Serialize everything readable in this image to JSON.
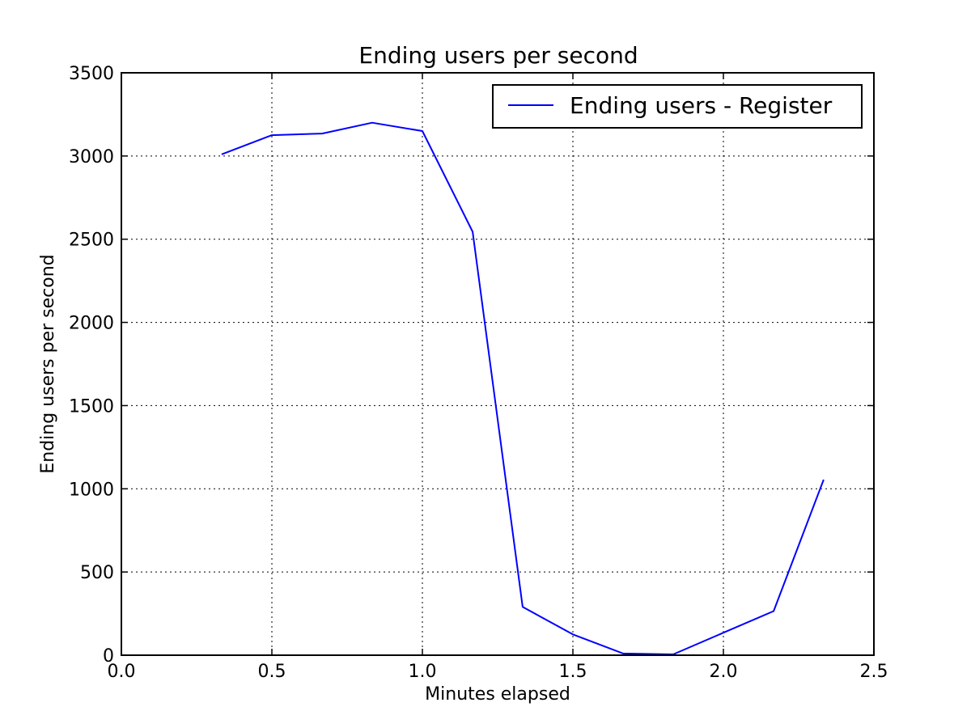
{
  "chart_data": {
    "type": "line",
    "title": "Ending users per second",
    "xlabel": "Minutes elapsed",
    "ylabel": "Ending users per second",
    "xlim": [
      0.0,
      2.5
    ],
    "ylim": [
      0,
      3500
    ],
    "xticks": [
      "0.0",
      "0.5",
      "1.0",
      "1.5",
      "2.0",
      "2.5"
    ],
    "yticks": [
      "0",
      "500",
      "1000",
      "1500",
      "2000",
      "2500",
      "3000",
      "3500"
    ],
    "grid": true,
    "legend_position": "top-right",
    "series": [
      {
        "name": "Ending users - Register",
        "color": "#0000ff",
        "x": [
          0.333,
          0.5,
          0.667,
          0.833,
          1.0,
          1.167,
          1.333,
          1.5,
          1.667,
          1.833,
          2.0,
          2.167,
          2.333
        ],
        "y": [
          3010,
          3125,
          3135,
          3200,
          3150,
          2545,
          290,
          125,
          10,
          5,
          135,
          265,
          1055
        ]
      }
    ]
  }
}
